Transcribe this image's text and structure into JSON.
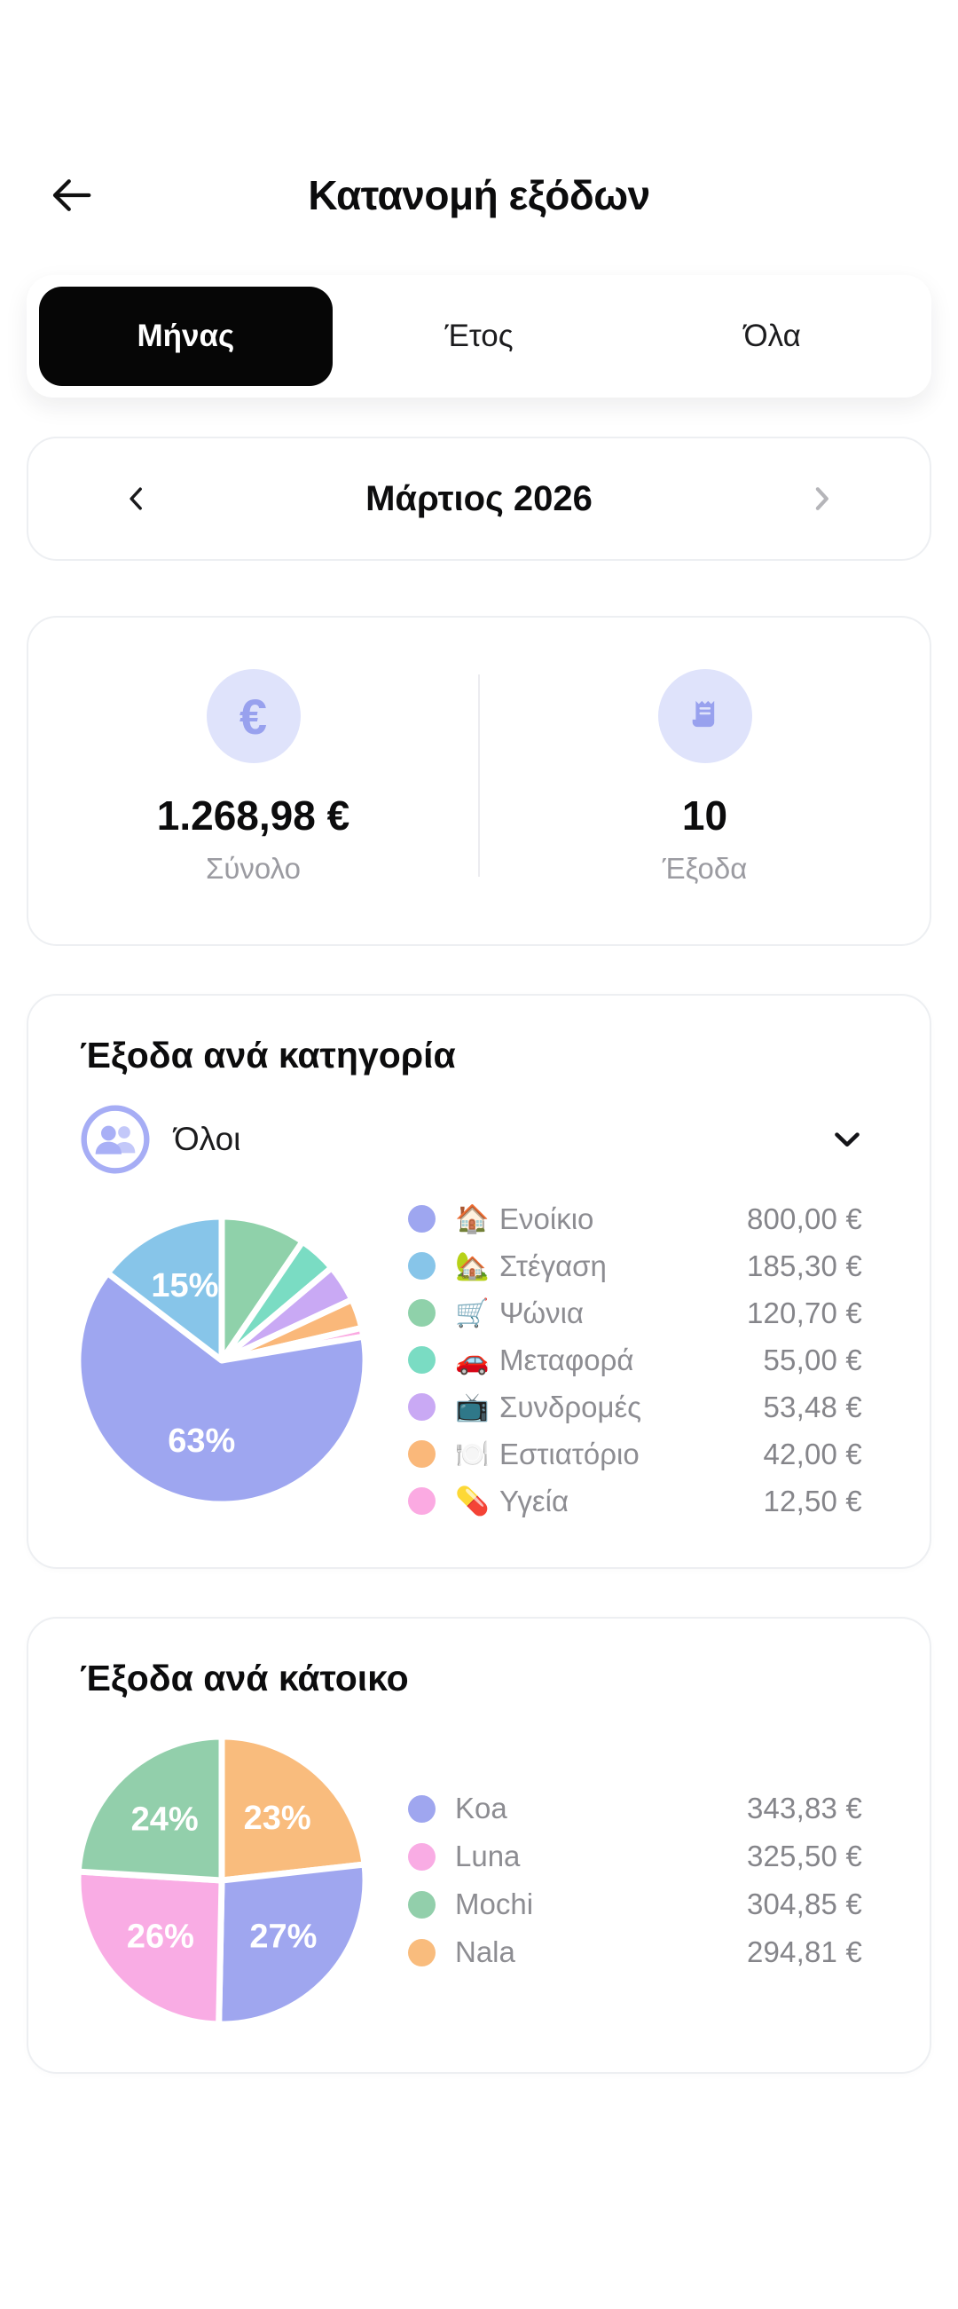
{
  "header": {
    "title": "Κατανομή εξόδων"
  },
  "tabs": {
    "month": "Μήνας",
    "year": "Έτος",
    "all": "Όλα",
    "selected": "Μήνας"
  },
  "month_nav": {
    "label": "Μάρτιος 2026"
  },
  "summary": {
    "total_value": "1.268,98 €",
    "total_label": "Σύνολο",
    "count_value": "10",
    "count_label": "Έξοδα"
  },
  "category_filter": {
    "label": "Όλοι"
  },
  "colors": {
    "selected_pill": "#060606",
    "accent_icon": "#98a1ee",
    "accent_soft": "#dfe3fb",
    "muted_text": "#8d8d92",
    "chevron_disabled": "#b5b5b9"
  },
  "icons": {
    "back": "back-arrow-icon",
    "prev": "chevron-left-icon",
    "next": "chevron-right-icon",
    "total": "euro-icon",
    "count": "receipt-icon",
    "filter": "people-icon",
    "dropdown": "chevron-down-icon"
  },
  "chart_data": [
    {
      "type": "pie",
      "title": "Έξοδα ανά κατηγορία",
      "legend_position": "right",
      "categories": [
        "Ενοίκιο",
        "Στέγαση",
        "Ψώνια",
        "Μεταφορά",
        "Συνδρομές",
        "Εστιατόριο",
        "Υγεία"
      ],
      "values": [
        800.0,
        185.3,
        120.7,
        55.0,
        53.48,
        42.0,
        12.5
      ],
      "value_labels": [
        "800,00 €",
        "185,30 €",
        "120,70 €",
        "55,00 €",
        "53,48 €",
        "42,00 €",
        "12,50 €"
      ],
      "pct_labels": [
        "63%",
        "15%",
        "",
        "",
        "",
        "",
        ""
      ],
      "emojis": [
        "🏠",
        "🏡",
        "🛒",
        "🚗",
        "📺",
        "🍽️",
        "💊"
      ],
      "icon_names": [
        "home-icon",
        "housing-icon",
        "groceries-cart-icon",
        "car-icon",
        "tv-icon",
        "restaurant-icon",
        "pill-icon"
      ],
      "colors": [
        "#9ea6f0",
        "#87c5e9",
        "#8fd1aa",
        "#7adcc3",
        "#c9a9f4",
        "#fab87a",
        "#fbaae2"
      ],
      "draw_order": [
        2,
        3,
        4,
        5,
        6,
        0,
        1
      ],
      "slice_gap_color": "#ffffff"
    },
    {
      "type": "pie",
      "title": "Έξοδα ανά κάτοικο",
      "legend_position": "right",
      "categories": [
        "Koa",
        "Luna",
        "Mochi",
        "Nala"
      ],
      "values": [
        343.83,
        325.5,
        304.85,
        294.81
      ],
      "value_labels": [
        "343,83 €",
        "325,50 €",
        "304,85 €",
        "294,81 €"
      ],
      "pct_labels": [
        "27%",
        "26%",
        "24%",
        "23%"
      ],
      "colors": [
        "#9fa6ef",
        "#f9ace4",
        "#92cfab",
        "#f9bc7d"
      ],
      "draw_order": [
        3,
        0,
        1,
        2
      ],
      "slice_gap_color": "#ffffff"
    }
  ]
}
